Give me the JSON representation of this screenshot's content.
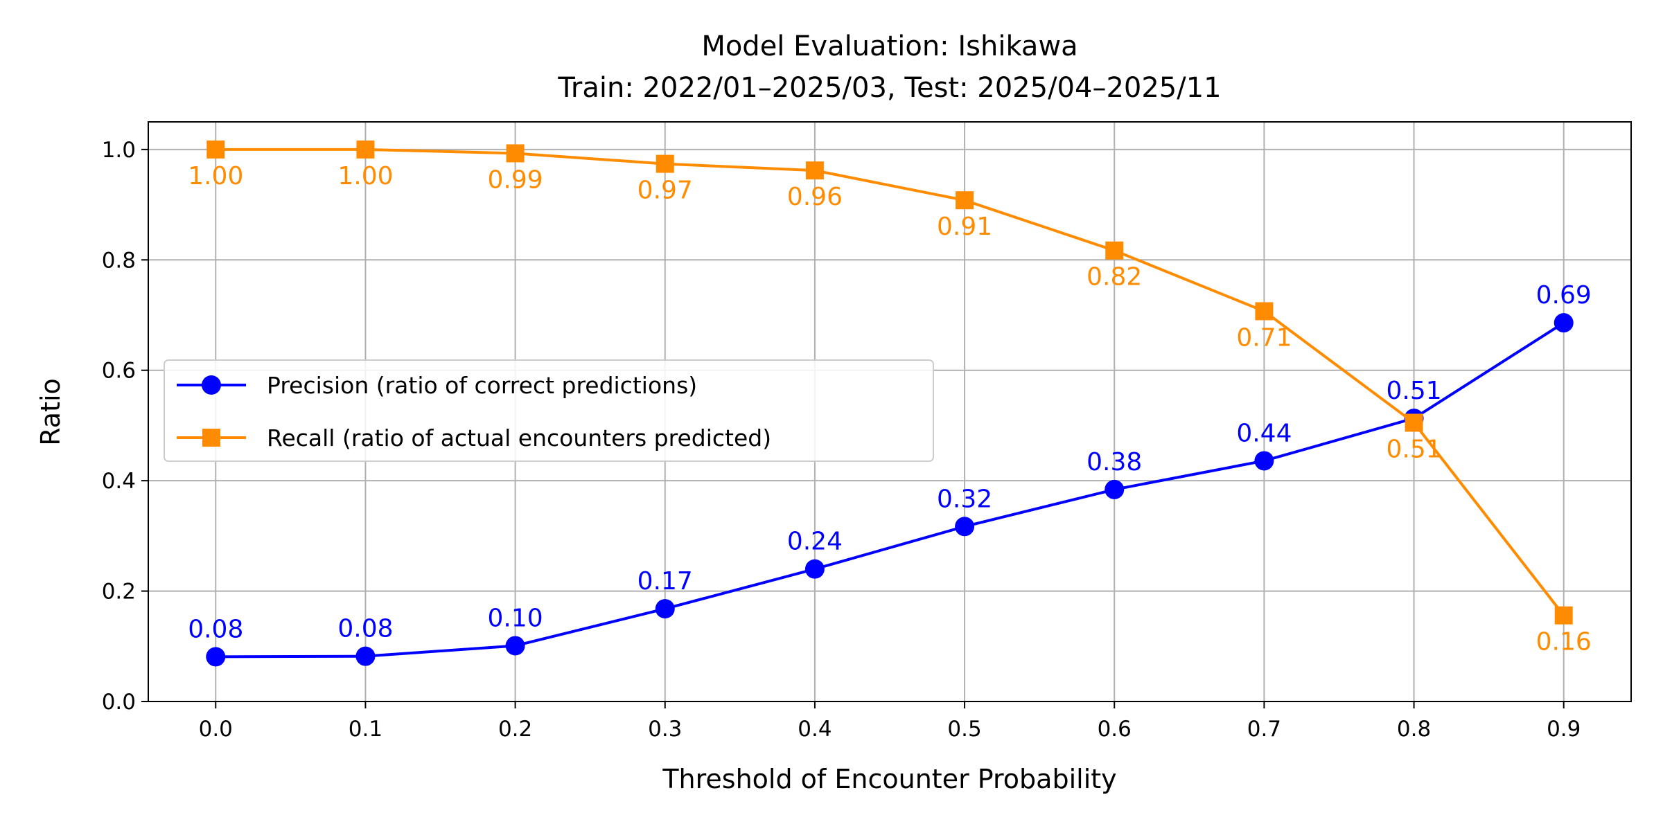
{
  "chart_data": {
    "type": "line",
    "title": "Model Evaluation: Ishikawa",
    "subtitle": "Train: 2022/01–2025/03, Test: 2025/04–2025/11",
    "xlabel": "Threshold of Encounter Probability",
    "ylabel": "Ratio",
    "x": [
      0.0,
      0.1,
      0.2,
      0.3,
      0.4,
      0.5,
      0.6,
      0.7,
      0.8,
      0.9
    ],
    "xlim": [
      -0.045,
      0.945
    ],
    "ylim": [
      0,
      1.05
    ],
    "xticks": [
      "0.0",
      "0.1",
      "0.2",
      "0.3",
      "0.4",
      "0.5",
      "0.6",
      "0.7",
      "0.8",
      "0.9"
    ],
    "yticks": [
      "0.0",
      "0.2",
      "0.4",
      "0.6",
      "0.8",
      "1.0"
    ],
    "grid": true,
    "legend_position": "center-left",
    "series": [
      {
        "name": "Precision (ratio of correct predictions)",
        "color": "#0000ff",
        "marker": "circle",
        "values": [
          0.081,
          0.082,
          0.101,
          0.168,
          0.24,
          0.317,
          0.384,
          0.436,
          0.513,
          0.686
        ],
        "labels": [
          "0.08",
          "0.08",
          "0.10",
          "0.17",
          "0.24",
          "0.32",
          "0.38",
          "0.44",
          "0.51",
          "0.69"
        ]
      },
      {
        "name": "Recall (ratio of actual encounters predicted)",
        "color": "#ff8c00",
        "marker": "square",
        "values": [
          1.0,
          1.0,
          0.993,
          0.974,
          0.962,
          0.908,
          0.817,
          0.707,
          0.505,
          0.156
        ],
        "labels": [
          "1.00",
          "1.00",
          "0.99",
          "0.97",
          "0.96",
          "0.91",
          "0.82",
          "0.71",
          "0.51",
          "0.16"
        ]
      }
    ]
  }
}
